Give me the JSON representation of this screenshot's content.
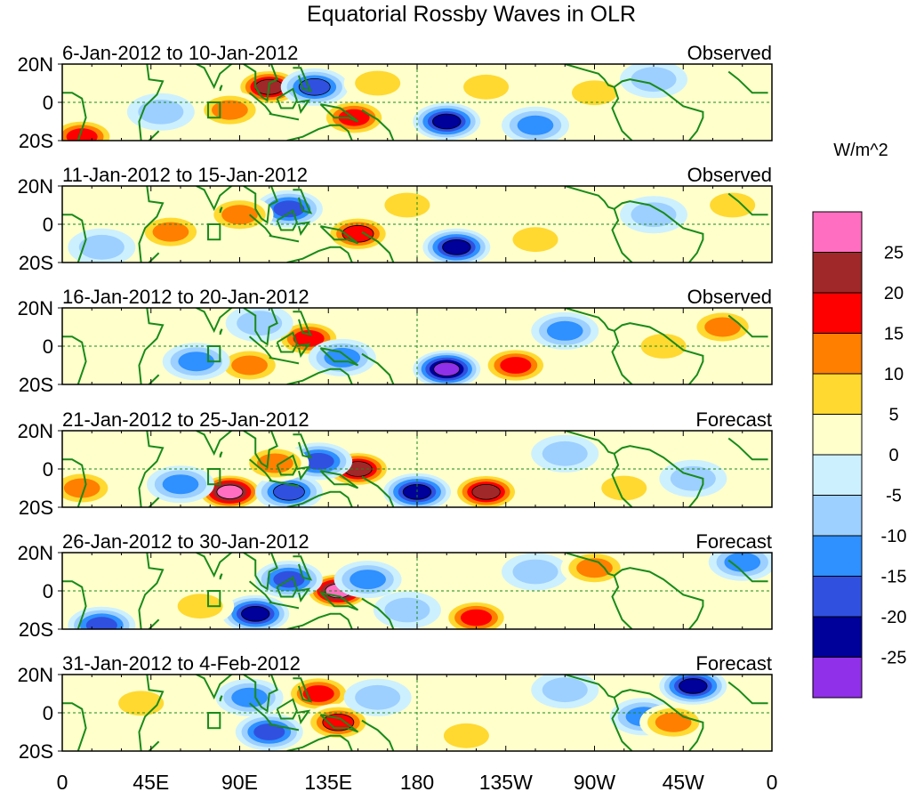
{
  "chart_data": {
    "type": "heatmap",
    "title": "Equatorial Rossby Waves in OLR",
    "units": "W/m^2",
    "x_range_deg_east": [
      0,
      360
    ],
    "y_range_deg": [
      -20,
      20
    ],
    "x_ticks": [
      "0",
      "45E",
      "90E",
      "135E",
      "180",
      "135W",
      "90W",
      "45W",
      "0"
    ],
    "y_ticks": [
      "20N",
      "0",
      "20S"
    ],
    "colorbar": {
      "labels": [
        "25",
        "20",
        "15",
        "10",
        "5",
        "0",
        "-5",
        "-10",
        "-15",
        "-20",
        "-25"
      ],
      "colors_top_to_bottom": [
        "#ff6ec0",
        "#a02828",
        "#ff0000",
        "#ff7f00",
        "#ffd930",
        "#ffffcc",
        "#cdf0ff",
        "#9dd0ff",
        "#2f90ff",
        "#3050e0",
        "#00009a",
        "#9030e8"
      ]
    },
    "panels": [
      {
        "period": "6-Jan-2012 to 10-Jan-2012",
        "status": "Observed",
        "features": [
          {
            "lon": 105,
            "lat": 8,
            "value": 22
          },
          {
            "lon": 128,
            "lat": 8,
            "value": -20
          },
          {
            "lon": 148,
            "lat": -8,
            "value": 18
          },
          {
            "lon": 85,
            "lat": -4,
            "value": 15
          },
          {
            "lon": 195,
            "lat": -10,
            "value": -25
          },
          {
            "lon": 10,
            "lat": -18,
            "value": 18
          },
          {
            "lon": 50,
            "lat": -5,
            "value": -8
          },
          {
            "lon": 215,
            "lat": 8,
            "value": 10
          },
          {
            "lon": 270,
            "lat": 5,
            "value": 10
          },
          {
            "lon": 240,
            "lat": -12,
            "value": -12
          },
          {
            "lon": 160,
            "lat": 10,
            "value": 8
          },
          {
            "lon": 300,
            "lat": 12,
            "value": -8
          }
        ]
      },
      {
        "period": "11-Jan-2012 to 15-Jan-2012",
        "status": "Observed",
        "features": [
          {
            "lon": 115,
            "lat": 8,
            "value": -18
          },
          {
            "lon": 90,
            "lat": 5,
            "value": 12
          },
          {
            "lon": 150,
            "lat": -5,
            "value": 20
          },
          {
            "lon": 200,
            "lat": -12,
            "value": -25
          },
          {
            "lon": 55,
            "lat": -4,
            "value": 14
          },
          {
            "lon": 240,
            "lat": -8,
            "value": 10
          },
          {
            "lon": 175,
            "lat": 10,
            "value": 8
          },
          {
            "lon": 300,
            "lat": 5,
            "value": -10
          },
          {
            "lon": 20,
            "lat": -12,
            "value": -10
          },
          {
            "lon": 340,
            "lat": 10,
            "value": 10
          }
        ]
      },
      {
        "period": "16-Jan-2012 to 20-Jan-2012",
        "status": "Observed",
        "features": [
          {
            "lon": 125,
            "lat": 4,
            "value": 18
          },
          {
            "lon": 142,
            "lat": -6,
            "value": -15
          },
          {
            "lon": 95,
            "lat": -10,
            "value": 14
          },
          {
            "lon": 68,
            "lat": -8,
            "value": -12
          },
          {
            "lon": 195,
            "lat": -12,
            "value": -26
          },
          {
            "lon": 230,
            "lat": -10,
            "value": 18
          },
          {
            "lon": 255,
            "lat": 8,
            "value": -12
          },
          {
            "lon": 335,
            "lat": 10,
            "value": 14
          },
          {
            "lon": 100,
            "lat": 12,
            "value": -10
          },
          {
            "lon": 305,
            "lat": 0,
            "value": 8
          }
        ]
      },
      {
        "period": "21-Jan-2012 to 25-Jan-2012",
        "status": "Forecast",
        "features": [
          {
            "lon": 85,
            "lat": -12,
            "value": 26
          },
          {
            "lon": 115,
            "lat": -12,
            "value": -20
          },
          {
            "lon": 150,
            "lat": 0,
            "value": 22
          },
          {
            "lon": 130,
            "lat": 4,
            "value": -16
          },
          {
            "lon": 180,
            "lat": -12,
            "value": -22
          },
          {
            "lon": 215,
            "lat": -12,
            "value": 25
          },
          {
            "lon": 60,
            "lat": -8,
            "value": -12
          },
          {
            "lon": 10,
            "lat": -10,
            "value": 14
          },
          {
            "lon": 108,
            "lat": 3,
            "value": 15
          },
          {
            "lon": 255,
            "lat": 8,
            "value": -10
          },
          {
            "lon": 320,
            "lat": -5,
            "value": -10
          },
          {
            "lon": 285,
            "lat": -10,
            "value": 8
          }
        ]
      },
      {
        "period": "26-Jan-2012 to 30-Jan-2012",
        "status": "Forecast",
        "features": [
          {
            "lon": 140,
            "lat": 0,
            "value": 26
          },
          {
            "lon": 115,
            "lat": 6,
            "value": -18
          },
          {
            "lon": 98,
            "lat": -12,
            "value": -22
          },
          {
            "lon": 155,
            "lat": 6,
            "value": -12
          },
          {
            "lon": 210,
            "lat": -14,
            "value": 18
          },
          {
            "lon": 20,
            "lat": -18,
            "value": -16
          },
          {
            "lon": 70,
            "lat": -8,
            "value": 10
          },
          {
            "lon": 240,
            "lat": 10,
            "value": -10
          },
          {
            "lon": 345,
            "lat": 15,
            "value": -14
          },
          {
            "lon": 270,
            "lat": 12,
            "value": 12
          },
          {
            "lon": 175,
            "lat": -10,
            "value": -8
          }
        ]
      },
      {
        "period": "31-Jan-2012 to 4-Feb-2012",
        "status": "Forecast",
        "features": [
          {
            "lon": 130,
            "lat": 10,
            "value": 16
          },
          {
            "lon": 140,
            "lat": -5,
            "value": 20
          },
          {
            "lon": 105,
            "lat": -10,
            "value": -16
          },
          {
            "lon": 95,
            "lat": 8,
            "value": -12
          },
          {
            "lon": 320,
            "lat": 14,
            "value": -22
          },
          {
            "lon": 295,
            "lat": -2,
            "value": -12
          },
          {
            "lon": 310,
            "lat": -5,
            "value": 14
          },
          {
            "lon": 160,
            "lat": 8,
            "value": -8
          },
          {
            "lon": 255,
            "lat": 12,
            "value": -8
          },
          {
            "lon": 205,
            "lat": -12,
            "value": 8
          },
          {
            "lon": 40,
            "lat": 5,
            "value": 8
          }
        ]
      }
    ]
  }
}
